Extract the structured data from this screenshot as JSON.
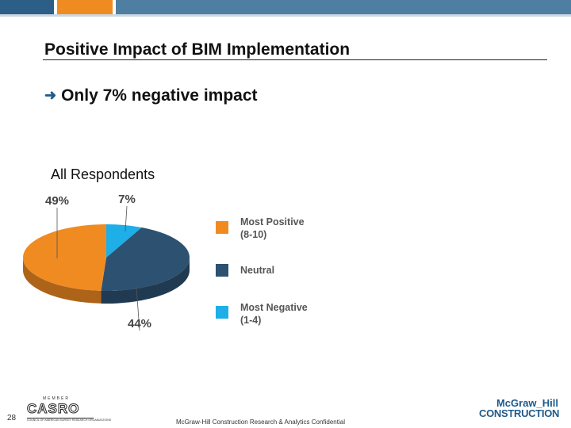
{
  "slide": {
    "title": "Positive Impact of BIM Implementation",
    "bullet": "Only 7% negative impact",
    "respondents_label": "All Respondents",
    "page_number": "28",
    "footer_text": "McGraw-Hill Construction Research & Analytics Confidential",
    "casro_member": "MEMBER",
    "casro_logo": "CASRO",
    "casro_tagline": "COUNCIL OF AMERICAN SURVEY RESEARCH ORGANIZATIONS",
    "brand_line1": "McGraw_Hill",
    "brand_line2": "CONSTRUCTION",
    "colors": {
      "orange": "#f08b22",
      "navy": "#2d5170",
      "cyan": "#1eaee8",
      "bar_blue": "#2d5f86"
    }
  },
  "chart_data": {
    "type": "pie",
    "title": "",
    "slices": [
      {
        "name": "Most Positive (8-10)",
        "value": 49,
        "label": "49%",
        "color": "#f08b22"
      },
      {
        "name": "Neutral",
        "value": 44,
        "label": "44%",
        "color": "#2d5170"
      },
      {
        "name": "Most Negative (1-4)",
        "value": 7,
        "label": "7%",
        "color": "#1eaee8"
      }
    ],
    "legend": {
      "placement": "right",
      "entries": [
        "Most Positive\n(8-10)",
        "Neutral",
        "Most Negative\n(1-4)"
      ]
    }
  }
}
